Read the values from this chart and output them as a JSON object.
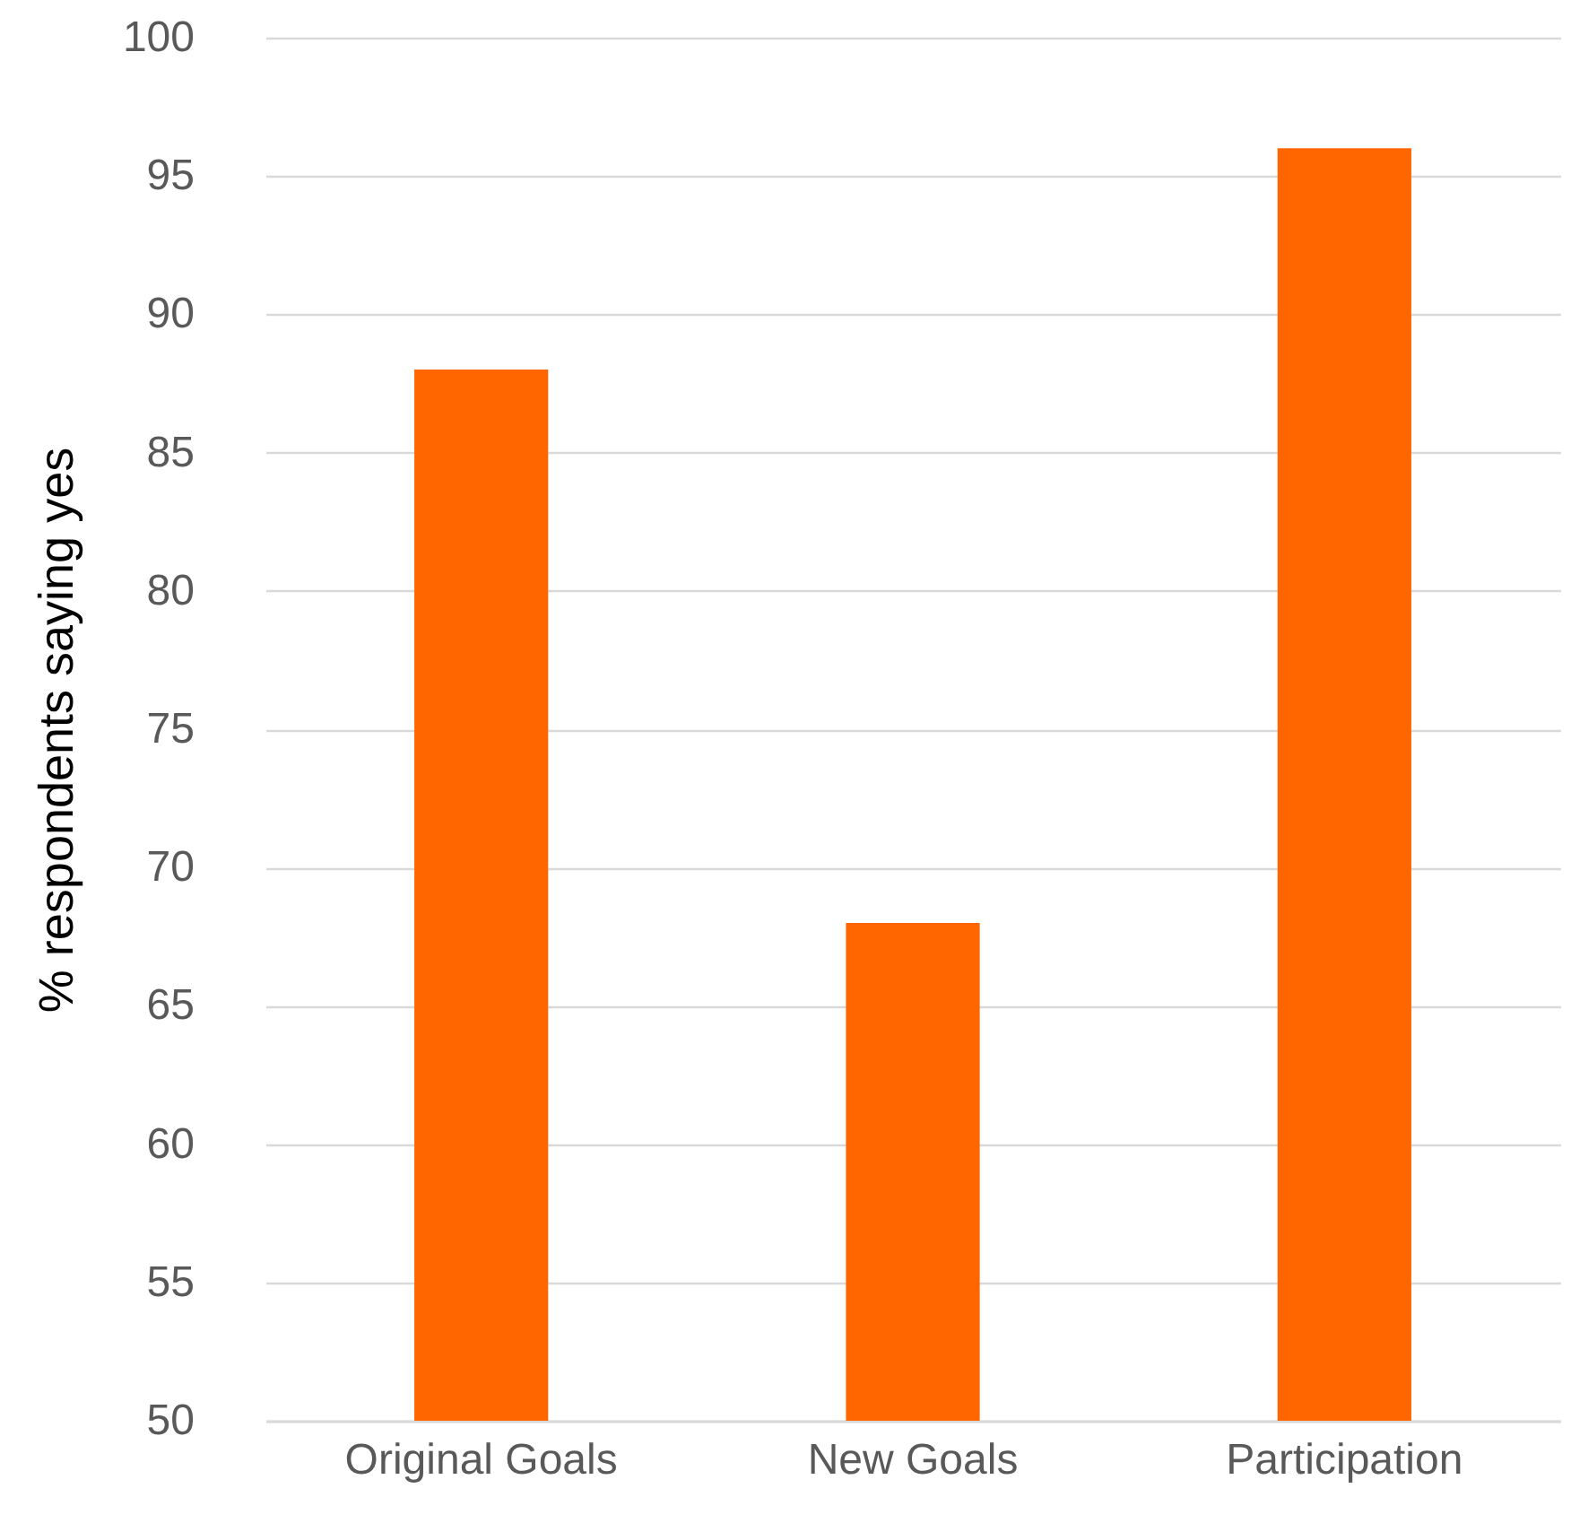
{
  "chart_data": {
    "type": "bar",
    "ylabel": "% respondents saying yes",
    "categories": [
      "Original Goals",
      "New Goals",
      "Participation"
    ],
    "values": [
      88,
      68,
      96
    ],
    "color": "#ff6600",
    "ylim": [
      50,
      100
    ],
    "yticks": [
      50,
      55,
      60,
      65,
      70,
      75,
      80,
      85,
      90,
      95,
      100
    ],
    "grid": "y"
  }
}
